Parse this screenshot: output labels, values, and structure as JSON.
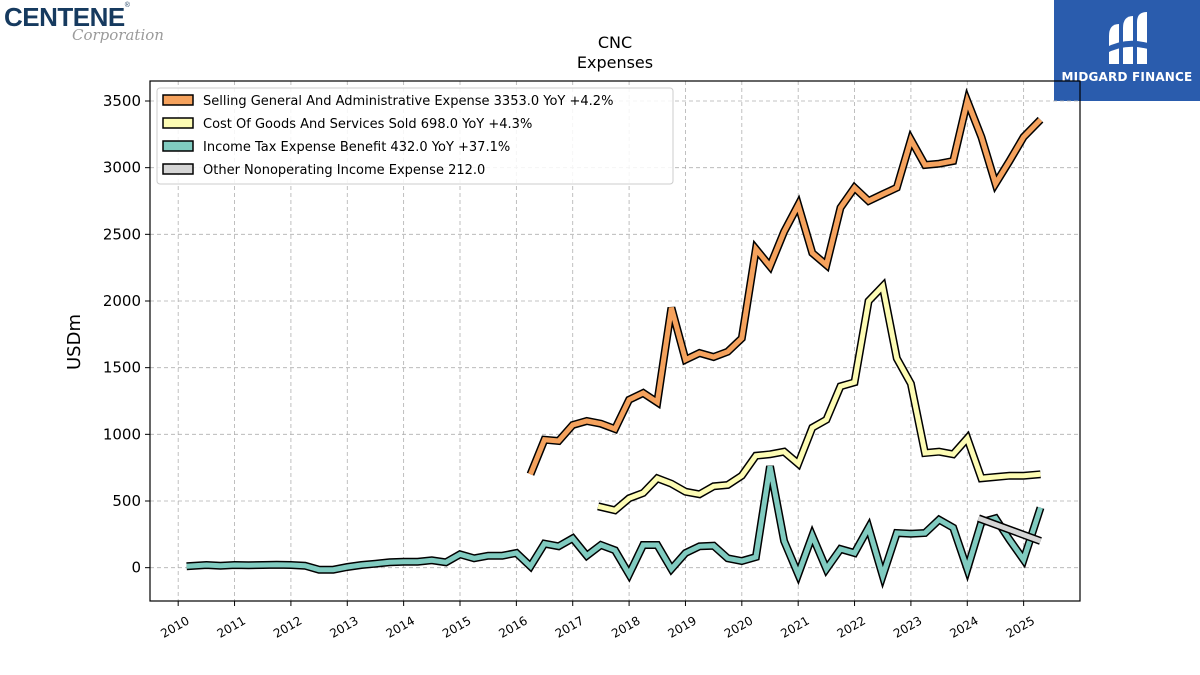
{
  "logos": {
    "left_brand": "CENTENE",
    "left_brand_mark": "®",
    "left_sub": "Corporation",
    "right_brand": "MIDGARD FINANCE",
    "right_icon": "midgard-m-icon"
  },
  "chart_data": {
    "type": "line",
    "title": "CNC",
    "subtitle": "Expenses",
    "xlabel": "",
    "ylabel": "USDm",
    "xlim": [
      2009.5,
      2026.0
    ],
    "ylim": [
      -250,
      3650
    ],
    "x_ticks": [
      2010,
      2011,
      2012,
      2013,
      2014,
      2015,
      2016,
      2017,
      2018,
      2019,
      2020,
      2021,
      2022,
      2023,
      2024,
      2025
    ],
    "x_tick_labels": [
      "2010",
      "2011",
      "2012",
      "2013",
      "2014",
      "2015",
      "2016",
      "2017",
      "2018",
      "2019",
      "2020",
      "2021",
      "2022",
      "2023",
      "2024",
      "2025"
    ],
    "y_ticks": [
      0,
      500,
      1000,
      1500,
      2000,
      2500,
      3000,
      3500
    ],
    "y_tick_labels": [
      "0",
      "500",
      "1000",
      "1500",
      "2000",
      "2500",
      "3000",
      "3500"
    ],
    "grid": true,
    "legend_position": "top-left",
    "series": [
      {
        "name": "Selling General And Administrative Expense  3353.0 YoY +4.2%",
        "color": "#f5a25d",
        "points": [
          [
            2016.25,
            700
          ],
          [
            2016.5,
            960
          ],
          [
            2016.75,
            950
          ],
          [
            2017.0,
            1070
          ],
          [
            2017.25,
            1100
          ],
          [
            2017.5,
            1080
          ],
          [
            2017.75,
            1040
          ],
          [
            2018.0,
            1260
          ],
          [
            2018.25,
            1310
          ],
          [
            2018.5,
            1240
          ],
          [
            2018.75,
            1950
          ],
          [
            2019.0,
            1560
          ],
          [
            2019.25,
            1610
          ],
          [
            2019.5,
            1580
          ],
          [
            2019.75,
            1620
          ],
          [
            2020.0,
            1720
          ],
          [
            2020.25,
            2390
          ],
          [
            2020.5,
            2260
          ],
          [
            2020.75,
            2520
          ],
          [
            2021.0,
            2720
          ],
          [
            2021.25,
            2360
          ],
          [
            2021.5,
            2270
          ],
          [
            2021.75,
            2700
          ],
          [
            2022.0,
            2850
          ],
          [
            2022.25,
            2750
          ],
          [
            2022.5,
            2800
          ],
          [
            2022.75,
            2850
          ],
          [
            2023.0,
            3210
          ],
          [
            2023.25,
            3020
          ],
          [
            2023.5,
            3030
          ],
          [
            2023.75,
            3050
          ],
          [
            2024.0,
            3500
          ],
          [
            2024.25,
            3230
          ],
          [
            2024.5,
            2880
          ],
          [
            2024.75,
            3050
          ],
          [
            2025.0,
            3230
          ],
          [
            2025.3,
            3360
          ]
        ]
      },
      {
        "name": "Cost Of Goods And Services Sold  698.0 YoY +4.3%",
        "color": "#fdfcb4",
        "points": [
          [
            2017.45,
            460
          ],
          [
            2017.75,
            430
          ],
          [
            2018.0,
            520
          ],
          [
            2018.25,
            560
          ],
          [
            2018.5,
            670
          ],
          [
            2018.75,
            630
          ],
          [
            2019.0,
            570
          ],
          [
            2019.25,
            550
          ],
          [
            2019.5,
            610
          ],
          [
            2019.75,
            620
          ],
          [
            2020.0,
            690
          ],
          [
            2020.25,
            840
          ],
          [
            2020.5,
            850
          ],
          [
            2020.75,
            870
          ],
          [
            2021.0,
            780
          ],
          [
            2021.25,
            1050
          ],
          [
            2021.5,
            1110
          ],
          [
            2021.75,
            1360
          ],
          [
            2022.0,
            1390
          ],
          [
            2022.25,
            2000
          ],
          [
            2022.5,
            2110
          ],
          [
            2022.75,
            1570
          ],
          [
            2023.0,
            1380
          ],
          [
            2023.25,
            860
          ],
          [
            2023.5,
            870
          ],
          [
            2023.75,
            850
          ],
          [
            2024.0,
            970
          ],
          [
            2024.25,
            670
          ],
          [
            2024.5,
            680
          ],
          [
            2024.75,
            690
          ],
          [
            2025.0,
            690
          ],
          [
            2025.3,
            700
          ]
        ]
      },
      {
        "name": "Income Tax Expense Benefit  432.0 YoY +37.1%",
        "color": "#80cbc0",
        "points": [
          [
            2010.15,
            10
          ],
          [
            2010.5,
            20
          ],
          [
            2010.75,
            15
          ],
          [
            2011.0,
            20
          ],
          [
            2011.25,
            18
          ],
          [
            2011.5,
            20
          ],
          [
            2011.75,
            22
          ],
          [
            2012.0,
            20
          ],
          [
            2012.25,
            15
          ],
          [
            2012.5,
            -15
          ],
          [
            2012.75,
            -15
          ],
          [
            2013.0,
            5
          ],
          [
            2013.25,
            20
          ],
          [
            2013.5,
            30
          ],
          [
            2013.75,
            40
          ],
          [
            2014.0,
            45
          ],
          [
            2014.25,
            45
          ],
          [
            2014.5,
            55
          ],
          [
            2014.75,
            40
          ],
          [
            2015.0,
            100
          ],
          [
            2015.25,
            70
          ],
          [
            2015.5,
            90
          ],
          [
            2015.75,
            90
          ],
          [
            2016.0,
            110
          ],
          [
            2016.25,
            10
          ],
          [
            2016.5,
            180
          ],
          [
            2016.75,
            160
          ],
          [
            2017.0,
            220
          ],
          [
            2017.25,
            90
          ],
          [
            2017.5,
            170
          ],
          [
            2017.75,
            130
          ],
          [
            2018.0,
            -50
          ],
          [
            2018.25,
            170
          ],
          [
            2018.5,
            170
          ],
          [
            2018.75,
            -10
          ],
          [
            2019.0,
            110
          ],
          [
            2019.25,
            160
          ],
          [
            2019.5,
            165
          ],
          [
            2019.75,
            70
          ],
          [
            2020.0,
            50
          ],
          [
            2020.25,
            80
          ],
          [
            2020.5,
            760
          ],
          [
            2020.75,
            200
          ],
          [
            2021.0,
            -50
          ],
          [
            2021.25,
            240
          ],
          [
            2021.5,
            -10
          ],
          [
            2021.75,
            140
          ],
          [
            2022.0,
            110
          ],
          [
            2022.25,
            300
          ],
          [
            2022.5,
            -60
          ],
          [
            2022.75,
            260
          ],
          [
            2023.0,
            255
          ],
          [
            2023.25,
            260
          ],
          [
            2023.5,
            360
          ],
          [
            2023.75,
            300
          ],
          [
            2024.0,
            -10
          ],
          [
            2024.25,
            340
          ],
          [
            2024.5,
            370
          ],
          [
            2024.75,
            210
          ],
          [
            2025.0,
            60
          ],
          [
            2025.3,
            450
          ]
        ]
      },
      {
        "name": "Other Nonoperating Income Expense  212.0",
        "color": "#d5d5d5",
        "points": [
          [
            2024.2,
            370
          ],
          [
            2025.3,
            200
          ]
        ]
      }
    ]
  }
}
